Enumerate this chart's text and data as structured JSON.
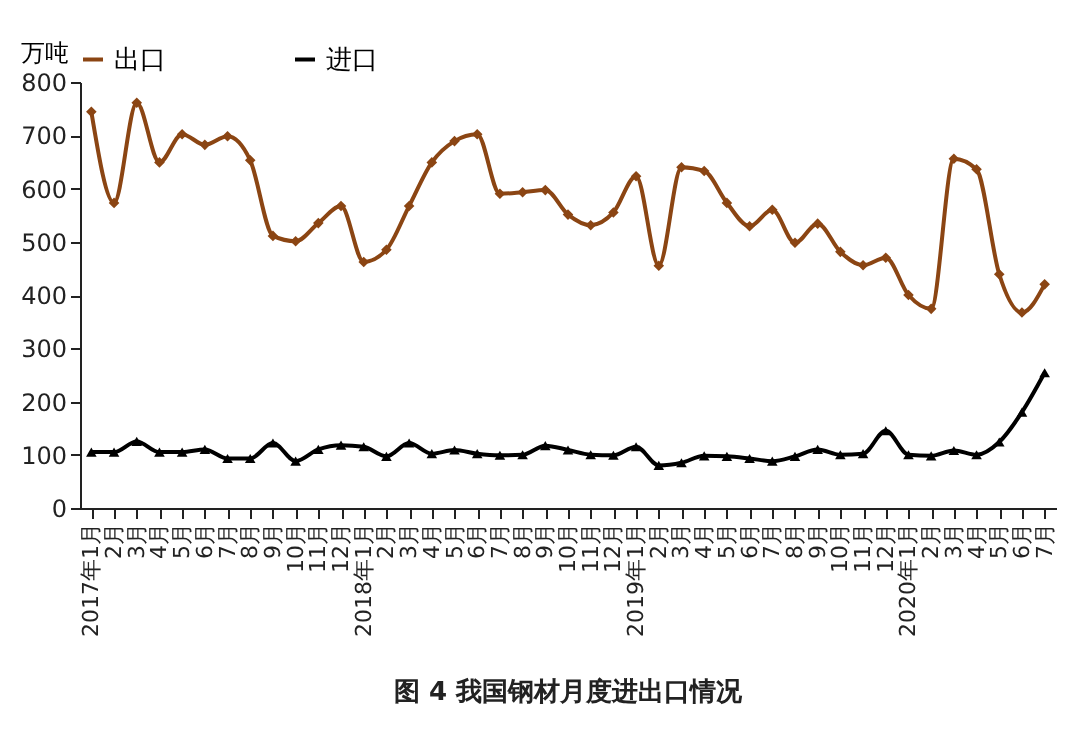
{
  "chart_data": {
    "type": "line",
    "title": "图 4 我国钢材月度进出口情况",
    "ylabel": "万吨",
    "categories": [
      "2017年1月",
      "2月",
      "3月",
      "4月",
      "5月",
      "6月",
      "7月",
      "8月",
      "9月",
      "10月",
      "11月",
      "12月",
      "2018年1月",
      "2月",
      "3月",
      "4月",
      "5月",
      "6月",
      "7月",
      "8月",
      "9月",
      "10月",
      "11月",
      "12月",
      "2019年1月",
      "2月",
      "3月",
      "4月",
      "5月",
      "6月",
      "7月",
      "8月",
      "9月",
      "10月",
      "11月",
      "12月",
      "2020年1月",
      "2月",
      "3月",
      "4月",
      "5月",
      "6月",
      "7月"
    ],
    "series": [
      {
        "name": "出口",
        "color": "#8b4513",
        "marker": "diamond",
        "values": [
          744,
          573,
          761,
          649,
          702,
          682,
          698,
          653,
          511,
          501,
          535,
          567,
          462,
          485,
          567,
          649,
          689,
          702,
          590,
          593,
          597,
          551,
          531,
          555,
          623,
          455,
          640,
          633,
          573,
          529,
          560,
          498,
          534,
          481,
          456,
          470,
          400,
          374,
          656,
          636,
          439,
          367,
          420
        ]
      },
      {
        "name": "进口",
        "color": "#000000",
        "marker": "triangle",
        "values": [
          105,
          105,
          125,
          105,
          105,
          110,
          93,
          93,
          122,
          88,
          110,
          118,
          115,
          97,
          122,
          102,
          109,
          102,
          99,
          100,
          117,
          109,
          100,
          99,
          115,
          80,
          85,
          98,
          97,
          93,
          88,
          97,
          110,
          100,
          102,
          145,
          100,
          98,
          108,
          100,
          124,
          180,
          254
        ]
      }
    ],
    "ylim": [
      0,
      800
    ],
    "yticks": [
      0,
      100,
      200,
      300,
      400,
      500,
      600,
      700,
      800
    ],
    "grid": false,
    "legend": "top",
    "line_style": "solid"
  }
}
